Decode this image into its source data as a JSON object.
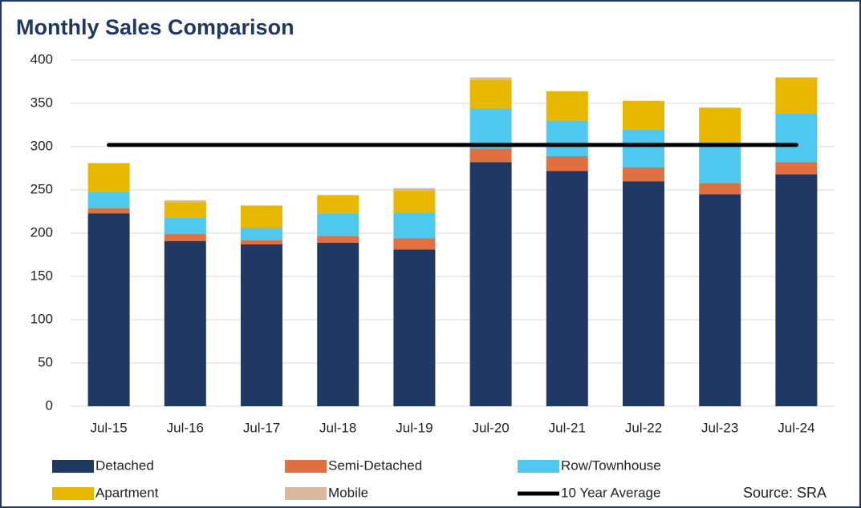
{
  "chart_data": {
    "type": "stacked_bar",
    "title": "Monthly Sales Comparison",
    "categories": [
      "Jul-15",
      "Jul-16",
      "Jul-17",
      "Jul-18",
      "Jul-19",
      "Jul-20",
      "Jul-21",
      "Jul-22",
      "Jul-23",
      "Jul-24"
    ],
    "series": [
      {
        "name": "Detached",
        "color": "#203864",
        "values": [
          223,
          191,
          187,
          189,
          181,
          282,
          272,
          260,
          245,
          268
        ]
      },
      {
        "name": "Semi-Detached",
        "color": "#e07040",
        "values": [
          6,
          8,
          5,
          8,
          13,
          16,
          17,
          16,
          13,
          14
        ]
      },
      {
        "name": "Row/Townhouse",
        "color": "#4fc8f0",
        "values": [
          19,
          19,
          14,
          26,
          30,
          46,
          41,
          44,
          47,
          56
        ]
      },
      {
        "name": "Apartment",
        "color": "#e8b800",
        "values": [
          33,
          18,
          26,
          21,
          25,
          33,
          34,
          33,
          40,
          42
        ]
      },
      {
        "name": "Mobile",
        "color": "#d9b89c",
        "values": [
          0,
          2,
          0,
          0,
          3,
          3,
          0,
          0,
          0,
          0
        ]
      },
      {
        "name": "10 Year Average",
        "color": "#000000",
        "type": "line",
        "values": [
          302,
          302,
          302,
          302,
          302,
          302,
          302,
          302,
          302,
          302
        ]
      }
    ],
    "ylim": [
      0,
      400
    ],
    "yticks": [
      0,
      50,
      100,
      150,
      200,
      250,
      300,
      350,
      400
    ],
    "grid": true,
    "annotation": "Source: SRA"
  }
}
